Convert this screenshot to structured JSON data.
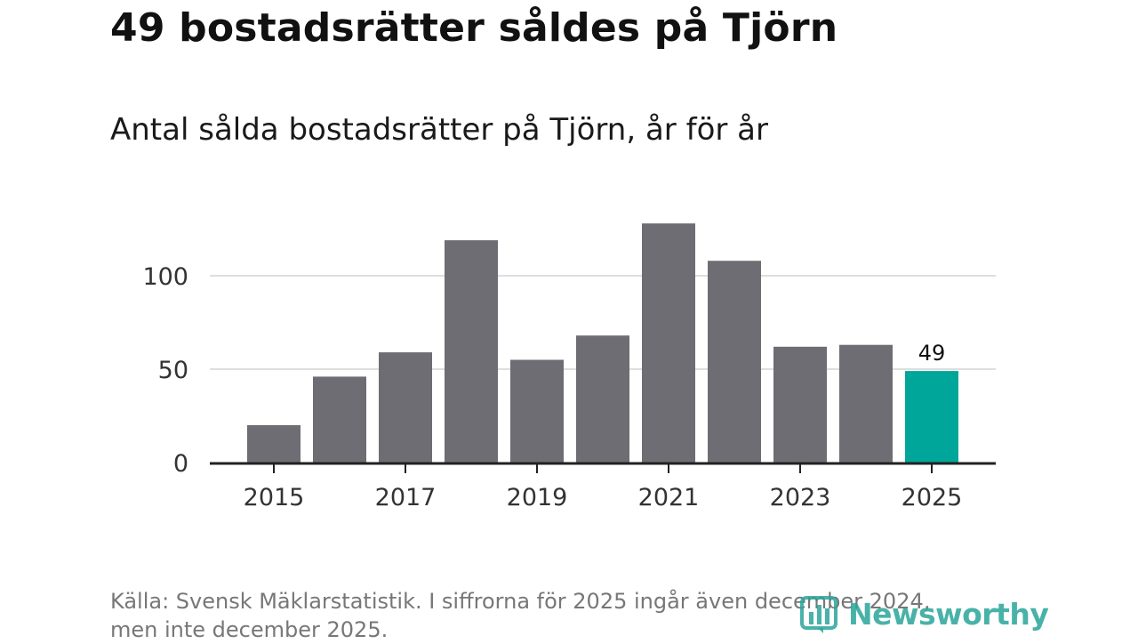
{
  "title": "49 bostadsrätter såldes på Tjörn",
  "subtitle": "Antal sålda bostadsrätter på Tjörn, år för år",
  "source_line1": "Källa: Svensk Mäklarstatistik. I siffrorna för 2025 ingår även december 2024,",
  "source_line2": "men inte december 2025.",
  "logo": {
    "text": "Newsworthy",
    "icon": "newsworthy-bar-icon"
  },
  "colors": {
    "bar": "#6e6d73",
    "highlight": "#00a69a",
    "grid": "#dedede",
    "axis": "#222222",
    "tick_text": "#333333"
  },
  "chart_data": {
    "type": "bar",
    "title": "Antal sålda bostadsrätter på Tjörn, år för år",
    "categories": [
      "2015",
      "2016",
      "2017",
      "2018",
      "2019",
      "2020",
      "2021",
      "2022",
      "2023",
      "2024",
      "2025"
    ],
    "values": [
      20,
      46,
      59,
      119,
      55,
      68,
      128,
      108,
      62,
      63,
      49
    ],
    "highlight_index": 10,
    "data_labels": [
      {
        "index": 10,
        "text": "49"
      }
    ],
    "xticks": [
      "2015",
      "2017",
      "2019",
      "2021",
      "2023",
      "2025"
    ],
    "yticks": [
      0,
      50,
      100
    ],
    "ylim": [
      0,
      135
    ],
    "grid": true,
    "xlabel": "",
    "ylabel": ""
  }
}
